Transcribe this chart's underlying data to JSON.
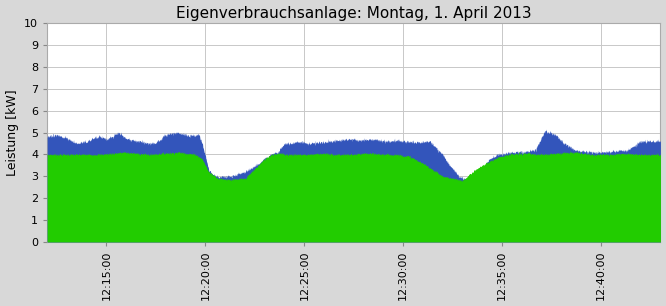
{
  "title": "Eigenverbrauchsanlage: Montag, 1. April 2013",
  "ylabel": "Leistung [kW]",
  "ylim": [
    0,
    10
  ],
  "yticks": [
    0,
    1,
    2,
    3,
    4,
    5,
    6,
    7,
    8,
    9,
    10
  ],
  "fig_bg_color": "#d8d8d8",
  "plot_bg_color": "#ffffff",
  "grid_color": "#c8c8c8",
  "green_color": "#22cc00",
  "blue_color": "#3355bb",
  "xtick_labels": [
    "12:15:00",
    "12:20:00",
    "12:25:00",
    "12:30:00",
    "12:35:00",
    "12:40:00"
  ],
  "xtick_positions": [
    180,
    480,
    780,
    1080,
    1380,
    1680
  ],
  "xlim": [
    0,
    1860
  ],
  "title_fontsize": 11,
  "label_fontsize": 9,
  "tick_fontsize": 8,
  "green_knots_t": [
    0,
    160,
    200,
    230,
    270,
    310,
    350,
    400,
    450,
    470,
    490,
    520,
    560,
    600,
    640,
    660,
    680,
    700,
    730,
    760,
    790,
    830,
    870,
    930,
    970,
    1030,
    1060,
    1100,
    1150,
    1200,
    1260,
    1290,
    1320,
    1370,
    1400,
    1450,
    1490,
    1540,
    1600,
    1650,
    1700,
    1750,
    1800,
    1860
  ],
  "green_knots_v": [
    4.0,
    4.0,
    4.05,
    4.1,
    4.05,
    4.0,
    4.05,
    4.1,
    4.0,
    3.8,
    3.2,
    2.9,
    2.85,
    2.9,
    3.5,
    3.8,
    4.0,
    4.05,
    4.0,
    4.0,
    4.0,
    4.05,
    4.0,
    4.0,
    4.05,
    4.0,
    4.0,
    3.9,
    3.5,
    3.0,
    2.8,
    3.2,
    3.5,
    3.9,
    4.0,
    4.05,
    4.0,
    4.05,
    4.1,
    4.0,
    4.0,
    4.05,
    4.0,
    4.0
  ],
  "blue_knots_t": [
    0,
    30,
    60,
    90,
    120,
    150,
    160,
    180,
    200,
    220,
    240,
    260,
    280,
    310,
    330,
    360,
    400,
    430,
    460,
    470,
    490,
    500,
    520,
    540,
    560,
    580,
    600,
    620,
    640,
    660,
    680,
    700,
    720,
    740,
    760,
    790,
    820,
    860,
    880,
    920,
    950,
    990,
    1030,
    1060,
    1090,
    1120,
    1160,
    1200,
    1220,
    1250,
    1280,
    1310,
    1340,
    1370,
    1400,
    1440,
    1480,
    1510,
    1540,
    1570,
    1600,
    1640,
    1680,
    1720,
    1760,
    1800,
    1860
  ],
  "blue_knots_v": [
    4.8,
    4.9,
    4.75,
    4.5,
    4.6,
    4.8,
    4.85,
    4.7,
    4.85,
    5.0,
    4.7,
    4.65,
    4.6,
    4.5,
    4.55,
    4.9,
    5.0,
    4.85,
    4.9,
    4.5,
    3.3,
    3.1,
    2.95,
    3.0,
    3.0,
    3.1,
    3.2,
    3.4,
    3.55,
    3.8,
    4.0,
    4.1,
    4.5,
    4.5,
    4.6,
    4.5,
    4.55,
    4.6,
    4.65,
    4.7,
    4.65,
    4.7,
    4.6,
    4.65,
    4.6,
    4.55,
    4.6,
    4.0,
    3.5,
    3.0,
    2.8,
    3.1,
    3.8,
    4.0,
    4.1,
    4.1,
    4.2,
    5.1,
    4.9,
    4.5,
    4.2,
    4.1,
    4.1,
    4.15,
    4.2,
    4.6,
    4.6
  ]
}
